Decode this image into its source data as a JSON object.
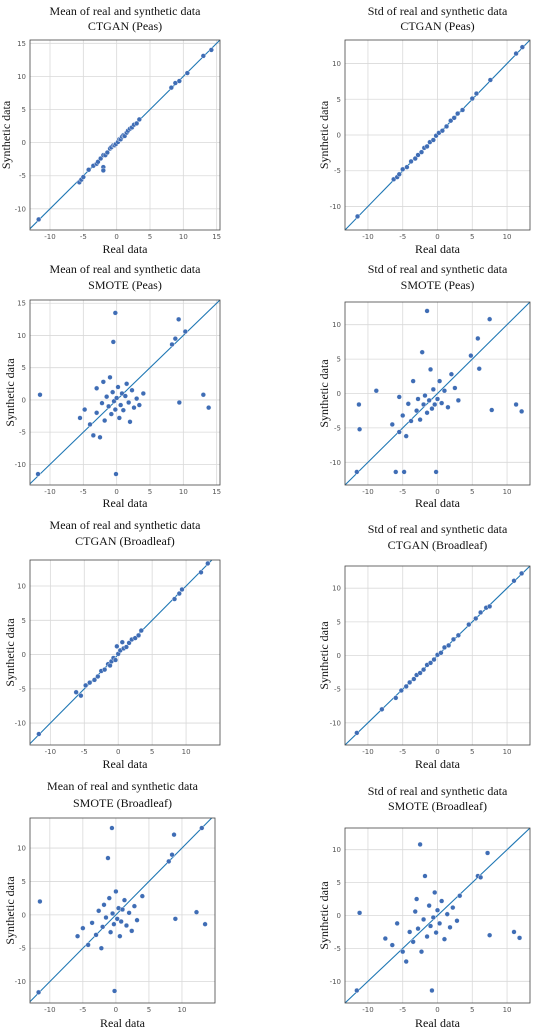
{
  "figure": {
    "colors": {
      "point": "#3f6db5",
      "point_edge": "#ffffff",
      "line": "#1f77b4",
      "grid": "#d9d9d9",
      "frame": "#444444"
    }
  },
  "chart_data": [
    {
      "type": "scatter",
      "title": "Mean of real and synthetic data",
      "subtitle": "CTGAN (Peas)",
      "xlabel": "Real data",
      "ylabel": "Synthetic data",
      "xlim": [
        -13,
        15.5
      ],
      "ylim": [
        -13.2,
        15.5
      ],
      "xticks": [
        -10,
        -5,
        0,
        5,
        10,
        15
      ],
      "yticks": [
        -10,
        -5,
        0,
        5,
        10,
        15
      ],
      "grid": true,
      "diagonal": true,
      "points": [
        [
          -11.7,
          -11.6
        ],
        [
          -5.6,
          -6.0
        ],
        [
          -5.3,
          -5.6
        ],
        [
          -5.0,
          -5.2
        ],
        [
          -4.2,
          -4.1
        ],
        [
          -3.5,
          -3.5
        ],
        [
          -3.0,
          -3.2
        ],
        [
          -2.8,
          -2.9
        ],
        [
          -2.4,
          -2.4
        ],
        [
          -2.0,
          -1.9
        ],
        [
          -2.0,
          -3.7
        ],
        [
          -2.0,
          -4.2
        ],
        [
          -1.7,
          -1.9
        ],
        [
          -1.4,
          -1.5
        ],
        [
          -1.0,
          -0.9
        ],
        [
          -0.8,
          -0.7
        ],
        [
          -0.5,
          -0.4
        ],
        [
          -0.3,
          -0.4
        ],
        [
          -0.1,
          -0.2
        ],
        [
          0.2,
          0.1
        ],
        [
          0.4,
          0.5
        ],
        [
          0.6,
          0.5
        ],
        [
          0.8,
          0.9
        ],
        [
          1.0,
          1.1
        ],
        [
          1.2,
          1.0
        ],
        [
          1.5,
          1.5
        ],
        [
          1.7,
          1.8
        ],
        [
          2.0,
          2.1
        ],
        [
          2.3,
          2.3
        ],
        [
          2.6,
          2.7
        ],
        [
          3.0,
          2.9
        ],
        [
          3.4,
          3.5
        ],
        [
          8.2,
          8.3
        ],
        [
          8.8,
          9.0
        ],
        [
          9.4,
          9.3
        ],
        [
          10.6,
          10.5
        ],
        [
          13.0,
          13.1
        ],
        [
          14.2,
          14.0
        ]
      ]
    },
    {
      "type": "scatter",
      "title": "Std of real and synthetic data",
      "subtitle": "CTGAN (Peas)",
      "xlabel": "Real data",
      "ylabel": "Synthetic data",
      "xlim": [
        -13.3,
        13.3
      ],
      "ylim": [
        -13.3,
        13.3
      ],
      "xticks": [
        -10,
        -5,
        0,
        5,
        10
      ],
      "yticks": [
        -10,
        -5,
        0,
        5,
        10
      ],
      "grid": true,
      "diagonal": true,
      "points": [
        [
          -11.5,
          -11.4
        ],
        [
          -6.3,
          -6.2
        ],
        [
          -5.8,
          -5.9
        ],
        [
          -5.5,
          -5.5
        ],
        [
          -5.0,
          -4.8
        ],
        [
          -4.4,
          -4.5
        ],
        [
          -3.8,
          -3.7
        ],
        [
          -3.2,
          -3.3
        ],
        [
          -2.8,
          -2.8
        ],
        [
          -2.3,
          -2.4
        ],
        [
          -1.9,
          -1.8
        ],
        [
          -1.5,
          -1.6
        ],
        [
          -1.1,
          -1.0
        ],
        [
          -0.6,
          -0.7
        ],
        [
          -0.2,
          -0.1
        ],
        [
          0.2,
          0.3
        ],
        [
          0.7,
          0.6
        ],
        [
          1.3,
          1.2
        ],
        [
          1.9,
          2.0
        ],
        [
          2.4,
          2.4
        ],
        [
          2.9,
          3.0
        ],
        [
          3.6,
          3.5
        ],
        [
          5.0,
          5.1
        ],
        [
          5.6,
          5.8
        ],
        [
          7.6,
          7.7
        ],
        [
          11.3,
          11.4
        ],
        [
          12.2,
          12.3
        ]
      ]
    },
    {
      "type": "scatter",
      "title": "Mean of real and synthetic data",
      "subtitle": "SMOTE (Peas)",
      "xlabel": "Real data",
      "ylabel": "Synthetic data",
      "xlim": [
        -13,
        15.5
      ],
      "ylim": [
        -13.2,
        15.5
      ],
      "xticks": [
        -10,
        -5,
        0,
        5,
        10,
        15
      ],
      "yticks": [
        -10,
        -5,
        0,
        5,
        10,
        15
      ],
      "grid": true,
      "diagonal": true,
      "points": [
        [
          -11.8,
          -11.5
        ],
        [
          -11.5,
          0.8
        ],
        [
          -5.5,
          -2.8
        ],
        [
          -4.8,
          -1.5
        ],
        [
          -4.0,
          -3.8
        ],
        [
          -3.5,
          -5.5
        ],
        [
          -3.0,
          -2.0
        ],
        [
          -3.0,
          1.8
        ],
        [
          -2.5,
          -5.8
        ],
        [
          -2.2,
          -0.5
        ],
        [
          -2.0,
          2.8
        ],
        [
          -1.8,
          -3.2
        ],
        [
          -1.5,
          0.5
        ],
        [
          -1.2,
          -1.0
        ],
        [
          -1.0,
          3.5
        ],
        [
          -0.8,
          -2.2
        ],
        [
          -0.6,
          1.2
        ],
        [
          -0.5,
          9.0
        ],
        [
          -0.4,
          -0.2
        ],
        [
          -0.2,
          -1.5
        ],
        [
          -0.2,
          13.5
        ],
        [
          -0.1,
          -11.5
        ],
        [
          0.0,
          0.3
        ],
        [
          0.2,
          2.0
        ],
        [
          0.4,
          -2.8
        ],
        [
          0.6,
          -0.8
        ],
        [
          0.8,
          1.0
        ],
        [
          1.0,
          -1.6
        ],
        [
          1.3,
          0.6
        ],
        [
          1.5,
          2.5
        ],
        [
          1.8,
          -0.4
        ],
        [
          2.0,
          -3.4
        ],
        [
          2.3,
          1.5
        ],
        [
          2.6,
          -1.2
        ],
        [
          3.0,
          0.2
        ],
        [
          3.4,
          -0.8
        ],
        [
          4.0,
          1.0
        ],
        [
          8.3,
          8.6
        ],
        [
          8.8,
          9.5
        ],
        [
          9.3,
          12.5
        ],
        [
          9.4,
          -0.4
        ],
        [
          10.3,
          10.6
        ],
        [
          13.0,
          0.8
        ],
        [
          13.8,
          -1.2
        ]
      ]
    },
    {
      "type": "scatter",
      "title": "Std of real and synthetic data",
      "subtitle": "SMOTE (Peas)",
      "xlabel": "Real data",
      "ylabel": "Synthetic data",
      "xlim": [
        -13.3,
        13.3
      ],
      "ylim": [
        -13.3,
        13.3
      ],
      "xticks": [
        -10,
        -5,
        0,
        5,
        10
      ],
      "yticks": [
        -10,
        -5,
        0,
        5,
        10
      ],
      "grid": true,
      "diagonal": true,
      "points": [
        [
          -11.6,
          -11.4
        ],
        [
          -11.3,
          -1.6
        ],
        [
          -11.2,
          -5.2
        ],
        [
          -8.8,
          0.4
        ],
        [
          -6.5,
          -4.5
        ],
        [
          -6.0,
          -11.4
        ],
        [
          -5.5,
          -5.6
        ],
        [
          -5.5,
          -0.5
        ],
        [
          -5.0,
          -3.2
        ],
        [
          -4.8,
          -11.4
        ],
        [
          -4.5,
          -6.2
        ],
        [
          -4.2,
          -1.5
        ],
        [
          -3.8,
          -4.0
        ],
        [
          -3.5,
          1.8
        ],
        [
          -3.0,
          -2.5
        ],
        [
          -2.8,
          -0.8
        ],
        [
          -2.5,
          -3.8
        ],
        [
          -2.2,
          6.0
        ],
        [
          -2.0,
          -1.6
        ],
        [
          -1.8,
          -0.3
        ],
        [
          -1.5,
          -2.8
        ],
        [
          -1.5,
          12.0
        ],
        [
          -1.2,
          -1.0
        ],
        [
          -1.0,
          3.5
        ],
        [
          -0.8,
          -2.2
        ],
        [
          -0.6,
          0.6
        ],
        [
          -0.4,
          -1.6
        ],
        [
          -0.2,
          -11.4
        ],
        [
          0.0,
          -0.8
        ],
        [
          0.3,
          1.8
        ],
        [
          0.6,
          -1.4
        ],
        [
          1.0,
          0.4
        ],
        [
          1.5,
          -2.0
        ],
        [
          2.0,
          2.8
        ],
        [
          2.5,
          0.8
        ],
        [
          3.0,
          -1.0
        ],
        [
          4.8,
          5.5
        ],
        [
          5.8,
          8.0
        ],
        [
          6.0,
          3.6
        ],
        [
          7.5,
          10.8
        ],
        [
          7.8,
          -2.4
        ],
        [
          11.3,
          -1.6
        ],
        [
          12.1,
          -2.6
        ]
      ]
    },
    {
      "type": "scatter",
      "title": "Mean of real and synthetic data",
      "subtitle": "CTGAN (Broadleaf)",
      "xlabel": "Real data",
      "ylabel": "Synthetic data",
      "xlim": [
        -13,
        15
      ],
      "ylim": [
        -13.2,
        13.8
      ],
      "xticks": [
        -10,
        -5,
        0,
        5,
        10
      ],
      "yticks": [
        -10,
        -5,
        0,
        5,
        10
      ],
      "grid": true,
      "diagonal": true,
      "points": [
        [
          -11.7,
          -11.6
        ],
        [
          -6.2,
          -5.5
        ],
        [
          -5.5,
          -6.0
        ],
        [
          -4.8,
          -4.5
        ],
        [
          -4.2,
          -4.1
        ],
        [
          -3.5,
          -3.7
        ],
        [
          -3.0,
          -3.2
        ],
        [
          -2.5,
          -2.4
        ],
        [
          -2.0,
          -2.2
        ],
        [
          -1.5,
          -1.4
        ],
        [
          -1.2,
          -1.6
        ],
        [
          -1.0,
          -1.0
        ],
        [
          -0.7,
          -0.5
        ],
        [
          -0.4,
          -0.8
        ],
        [
          -0.2,
          1.2
        ],
        [
          0.0,
          0.1
        ],
        [
          0.3,
          0.6
        ],
        [
          0.6,
          1.8
        ],
        [
          0.8,
          0.9
        ],
        [
          1.2,
          1.1
        ],
        [
          1.6,
          1.7
        ],
        [
          2.0,
          2.2
        ],
        [
          2.5,
          2.4
        ],
        [
          3.0,
          2.8
        ],
        [
          3.4,
          3.5
        ],
        [
          8.3,
          8.1
        ],
        [
          9.0,
          8.9
        ],
        [
          9.4,
          9.5
        ],
        [
          12.2,
          12.0
        ],
        [
          13.2,
          13.3
        ]
      ]
    },
    {
      "type": "scatter",
      "title": "Std of real and synthetic data",
      "subtitle": "CTGAN (Broadleaf)",
      "xlabel": "Real data",
      "ylabel": "Synthetic data",
      "xlim": [
        -13.3,
        13.3
      ],
      "ylim": [
        -13.3,
        13.3
      ],
      "xticks": [
        -10,
        -5,
        0,
        5,
        10
      ],
      "yticks": [
        -10,
        -5,
        0,
        5,
        10
      ],
      "grid": true,
      "diagonal": true,
      "points": [
        [
          -11.6,
          -11.5
        ],
        [
          -8.0,
          -8.0
        ],
        [
          -6.0,
          -6.3
        ],
        [
          -5.2,
          -5.2
        ],
        [
          -4.5,
          -4.6
        ],
        [
          -4.0,
          -4.0
        ],
        [
          -3.4,
          -3.5
        ],
        [
          -3.0,
          -2.9
        ],
        [
          -2.5,
          -2.6
        ],
        [
          -2.0,
          -2.1
        ],
        [
          -1.5,
          -1.4
        ],
        [
          -1.0,
          -1.1
        ],
        [
          -0.5,
          -0.6
        ],
        [
          0.0,
          0.1
        ],
        [
          0.5,
          0.4
        ],
        [
          1.0,
          1.2
        ],
        [
          1.6,
          1.5
        ],
        [
          2.3,
          2.4
        ],
        [
          3.0,
          3.0
        ],
        [
          4.5,
          4.6
        ],
        [
          5.5,
          5.5
        ],
        [
          6.2,
          6.4
        ],
        [
          7.0,
          7.1
        ],
        [
          7.5,
          7.3
        ],
        [
          11.0,
          11.1
        ],
        [
          12.1,
          12.2
        ]
      ]
    },
    {
      "type": "scatter",
      "title": "Mean of real and synthetic data",
      "subtitle": "SMOTE (Broadleaf)",
      "xlabel": "Real data",
      "ylabel": "Synthetic data",
      "xlim": [
        -13,
        15
      ],
      "ylim": [
        -13.2,
        14.5
      ],
      "xticks": [
        -10,
        -5,
        0,
        5,
        10
      ],
      "yticks": [
        -10,
        -5,
        0,
        5,
        10
      ],
      "grid": true,
      "diagonal": true,
      "points": [
        [
          -11.7,
          -11.6
        ],
        [
          -11.5,
          2.0
        ],
        [
          -5.8,
          -3.2
        ],
        [
          -5.0,
          -2.0
        ],
        [
          -4.2,
          -4.5
        ],
        [
          -3.6,
          -1.2
        ],
        [
          -3.0,
          -3.0
        ],
        [
          -2.6,
          0.6
        ],
        [
          -2.2,
          -5.0
        ],
        [
          -2.0,
          -1.8
        ],
        [
          -1.8,
          1.5
        ],
        [
          -1.5,
          -0.4
        ],
        [
          -1.2,
          8.5
        ],
        [
          -1.0,
          2.5
        ],
        [
          -0.8,
          -2.6
        ],
        [
          -0.6,
          13.0
        ],
        [
          -0.5,
          0.2
        ],
        [
          -0.3,
          -1.4
        ],
        [
          -0.2,
          -11.4
        ],
        [
          0.0,
          3.5
        ],
        [
          0.2,
          -0.6
        ],
        [
          0.4,
          1.0
        ],
        [
          0.6,
          -3.2
        ],
        [
          0.8,
          -1.0
        ],
        [
          1.0,
          0.8
        ],
        [
          1.3,
          2.2
        ],
        [
          1.6,
          -1.6
        ],
        [
          2.0,
          0.3
        ],
        [
          2.4,
          -2.4
        ],
        [
          2.8,
          1.3
        ],
        [
          3.2,
          -0.8
        ],
        [
          4.0,
          2.8
        ],
        [
          8.0,
          8.0
        ],
        [
          8.5,
          9.0
        ],
        [
          8.8,
          12.0
        ],
        [
          9.0,
          -0.6
        ],
        [
          12.2,
          0.4
        ],
        [
          13.0,
          13.0
        ],
        [
          13.5,
          -1.4
        ]
      ]
    },
    {
      "type": "scatter",
      "title": "Std of real and synthetic data",
      "subtitle": "SMOTE (Broadleaf)",
      "xlabel": "Real data",
      "ylabel": "Synthetic data",
      "xlim": [
        -13.3,
        13.3
      ],
      "ylim": [
        -13.3,
        13.3
      ],
      "xticks": [
        -10,
        -5,
        0,
        5,
        10
      ],
      "yticks": [
        -10,
        -5,
        0,
        5,
        10
      ],
      "grid": true,
      "diagonal": true,
      "points": [
        [
          -11.6,
          -11.4
        ],
        [
          -11.2,
          0.4
        ],
        [
          -7.5,
          -3.5
        ],
        [
          -6.5,
          -4.5
        ],
        [
          -5.8,
          -1.2
        ],
        [
          -5.0,
          -5.5
        ],
        [
          -4.5,
          -7.0
        ],
        [
          -4.0,
          -2.5
        ],
        [
          -3.5,
          -4.0
        ],
        [
          -3.2,
          0.6
        ],
        [
          -3.0,
          2.5
        ],
        [
          -2.8,
          -2.0
        ],
        [
          -2.5,
          10.8
        ],
        [
          -2.3,
          -5.5
        ],
        [
          -2.0,
          -0.6
        ],
        [
          -1.8,
          6.0
        ],
        [
          -1.5,
          -3.2
        ],
        [
          -1.2,
          1.5
        ],
        [
          -1.0,
          -1.6
        ],
        [
          -0.8,
          -11.4
        ],
        [
          -0.6,
          -0.3
        ],
        [
          -0.4,
          3.5
        ],
        [
          -0.2,
          -2.6
        ],
        [
          0.0,
          0.8
        ],
        [
          0.3,
          -1.2
        ],
        [
          0.6,
          2.2
        ],
        [
          1.0,
          -3.6
        ],
        [
          1.4,
          0.2
        ],
        [
          1.8,
          -1.8
        ],
        [
          2.2,
          1.2
        ],
        [
          2.8,
          -0.8
        ],
        [
          3.2,
          3.0
        ],
        [
          5.8,
          6.0
        ],
        [
          6.2,
          5.8
        ],
        [
          7.2,
          9.5
        ],
        [
          7.5,
          -3.0
        ],
        [
          11.0,
          -2.5
        ],
        [
          11.8,
          -3.4
        ]
      ]
    }
  ]
}
